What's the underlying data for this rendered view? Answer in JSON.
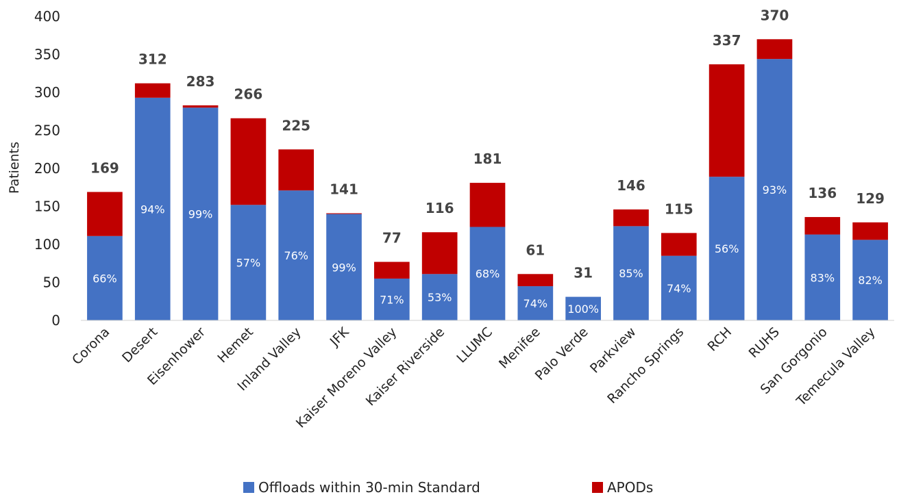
{
  "chart_data": {
    "type": "bar",
    "stacked": true,
    "ylabel": "Patients",
    "xlabel": "",
    "ylim": [
      0,
      400
    ],
    "yticks": [
      0,
      50,
      100,
      150,
      200,
      250,
      300,
      350,
      400
    ],
    "grid": false,
    "legend": "bottom",
    "categories": [
      "Corona",
      "Desert",
      "Eisenhower",
      "Hemet",
      "Inland Valley",
      "JFK",
      "Kaiser Moreno Valley",
      "Kaiser Riverside",
      "LLUMC",
      "Menifee",
      "Palo Verde",
      "Parkview",
      "Rancho Springs",
      "RCH",
      "RUHS",
      "San Gorgonio",
      "Temecula Valley"
    ],
    "series": [
      {
        "name": "Offloads within 30-min Standard",
        "color": "#4472C4",
        "values": [
          111,
          293,
          280,
          152,
          171,
          140,
          55,
          61,
          123,
          45,
          31,
          124,
          85,
          189,
          344,
          113,
          106
        ]
      },
      {
        "name": "APODs",
        "color": "#C00000",
        "values": [
          58,
          19,
          3,
          114,
          54,
          1,
          22,
          55,
          58,
          16,
          0,
          22,
          30,
          148,
          26,
          23,
          23
        ]
      }
    ],
    "totals": [
      "169",
      "312",
      "283",
      "266",
      "225",
      "141",
      "77",
      "116",
      "181",
      "61",
      "31",
      "146",
      "115",
      "337",
      "370",
      "136",
      "129"
    ],
    "percent_labels": [
      "66%",
      "94%",
      "99%",
      "57%",
      "76%",
      "99%",
      "71%",
      "53%",
      "68%",
      "74%",
      "100%",
      "85%",
      "74%",
      "56%",
      "93%",
      "83%",
      "82%"
    ]
  }
}
